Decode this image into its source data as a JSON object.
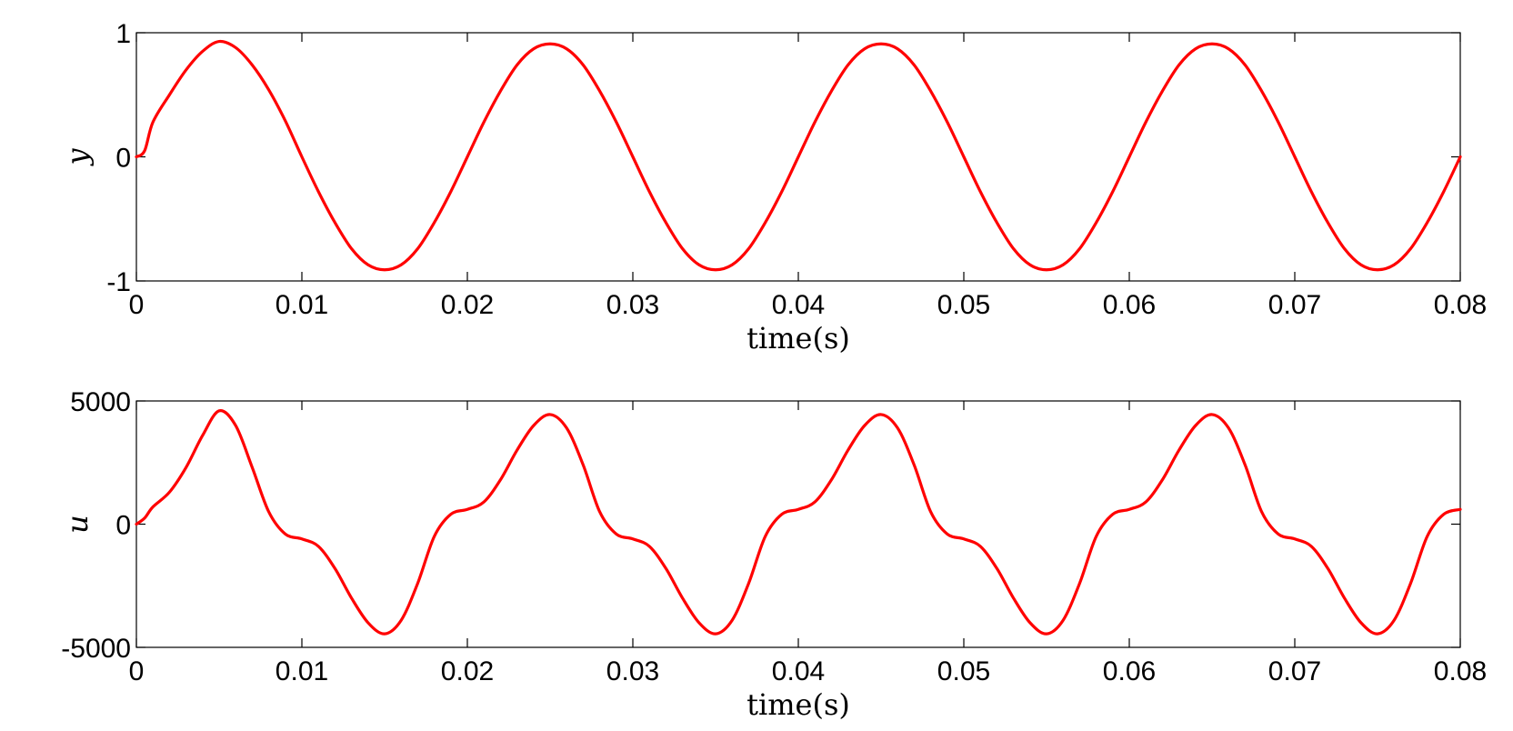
{
  "chart_data": [
    {
      "type": "line",
      "xlabel": "time(s)",
      "ylabel": "y",
      "xlim": [
        0,
        0.08
      ],
      "ylim": [
        -1,
        1
      ],
      "xticks": [
        "0",
        "0.01",
        "0.02",
        "0.03",
        "0.04",
        "0.05",
        "0.06",
        "0.07",
        "0.08"
      ],
      "yticks": [
        "-1",
        "0",
        "1"
      ],
      "grid": false,
      "series": [
        {
          "color": "#ff0000",
          "x": [
            0,
            0.0005,
            0.001,
            0.002,
            0.003,
            0.004,
            0.005,
            0.006,
            0.007,
            0.008,
            0.009,
            0.01,
            0.011,
            0.012,
            0.013,
            0.014,
            0.015,
            0.016,
            0.017,
            0.018,
            0.019,
            0.02,
            0.021,
            0.022,
            0.023,
            0.024,
            0.025,
            0.026,
            0.027,
            0.028,
            0.029,
            0.03,
            0.031,
            0.032,
            0.033,
            0.034,
            0.035,
            0.036,
            0.037,
            0.038,
            0.039,
            0.04,
            0.041,
            0.042,
            0.043,
            0.044,
            0.045,
            0.046,
            0.047,
            0.048,
            0.049,
            0.05,
            0.051,
            0.052,
            0.053,
            0.054,
            0.055,
            0.056,
            0.057,
            0.058,
            0.059,
            0.06,
            0.061,
            0.062,
            0.063,
            0.064,
            0.065,
            0.066,
            0.067,
            0.068,
            0.069,
            0.07,
            0.071,
            0.072,
            0.073,
            0.074,
            0.075,
            0.076,
            0.077,
            0.078,
            0.079,
            0.08
          ],
          "values": [
            0,
            0.05,
            0.28,
            0.5,
            0.7,
            0.85,
            0.93,
            0.88,
            0.74,
            0.54,
            0.29,
            0.0,
            -0.28,
            -0.53,
            -0.74,
            -0.87,
            -0.91,
            -0.87,
            -0.74,
            -0.53,
            -0.28,
            0.0,
            0.28,
            0.53,
            0.74,
            0.87,
            0.91,
            0.87,
            0.74,
            0.53,
            0.28,
            0.0,
            -0.28,
            -0.53,
            -0.74,
            -0.87,
            -0.91,
            -0.87,
            -0.74,
            -0.53,
            -0.28,
            0.0,
            0.28,
            0.53,
            0.74,
            0.87,
            0.91,
            0.87,
            0.74,
            0.53,
            0.28,
            0.0,
            -0.28,
            -0.53,
            -0.74,
            -0.87,
            -0.91,
            -0.87,
            -0.74,
            -0.53,
            -0.28,
            0.0,
            0.28,
            0.53,
            0.74,
            0.87,
            0.91,
            0.87,
            0.74,
            0.53,
            0.28,
            0.0,
            -0.28,
            -0.53,
            -0.74,
            -0.87,
            -0.91,
            -0.87,
            -0.74,
            -0.53,
            -0.28,
            0.0
          ]
        }
      ]
    },
    {
      "type": "line",
      "xlabel": "time(s)",
      "ylabel": "u",
      "xlim": [
        0,
        0.08
      ],
      "ylim": [
        -5000,
        5000
      ],
      "xticks": [
        "0",
        "0.01",
        "0.02",
        "0.03",
        "0.04",
        "0.05",
        "0.06",
        "0.07",
        "0.08"
      ],
      "yticks": [
        "-5000",
        "0",
        "5000"
      ],
      "grid": false,
      "series": [
        {
          "color": "#ff0000",
          "x": [
            0,
            0.0005,
            0.001,
            0.002,
            0.003,
            0.004,
            0.005,
            0.006,
            0.007,
            0.008,
            0.009,
            0.01,
            0.011,
            0.012,
            0.013,
            0.014,
            0.015,
            0.016,
            0.017,
            0.018,
            0.019,
            0.02,
            0.021,
            0.022,
            0.023,
            0.024,
            0.025,
            0.026,
            0.027,
            0.028,
            0.029,
            0.03,
            0.031,
            0.032,
            0.033,
            0.034,
            0.035,
            0.036,
            0.037,
            0.038,
            0.039,
            0.04,
            0.041,
            0.042,
            0.043,
            0.044,
            0.045,
            0.046,
            0.047,
            0.048,
            0.049,
            0.05,
            0.051,
            0.052,
            0.053,
            0.054,
            0.055,
            0.056,
            0.057,
            0.058,
            0.059,
            0.06,
            0.061,
            0.062,
            0.063,
            0.064,
            0.065,
            0.066,
            0.067,
            0.068,
            0.069,
            0.07,
            0.071,
            0.072,
            0.073,
            0.074,
            0.075,
            0.076,
            0.077,
            0.078,
            0.079,
            0.08
          ],
          "values": [
            0,
            250,
            700,
            1300,
            2300,
            3600,
            4600,
            4000,
            2300,
            500,
            -400,
            -600,
            -900,
            -1800,
            -3000,
            -4000,
            -4450,
            -3900,
            -2400,
            -500,
            400,
            600,
            900,
            1800,
            3000,
            4000,
            4450,
            3900,
            2400,
            500,
            -400,
            -600,
            -900,
            -1800,
            -3000,
            -4000,
            -4450,
            -3900,
            -2400,
            -500,
            400,
            600,
            900,
            1800,
            3000,
            4000,
            4450,
            3900,
            2400,
            500,
            -400,
            -600,
            -900,
            -1800,
            -3000,
            -4000,
            -4450,
            -3900,
            -2400,
            -500,
            400,
            600,
            900,
            1800,
            3000,
            4000,
            4450,
            3900,
            2400,
            500,
            -400,
            -600,
            -900,
            -1800,
            -3000,
            -4000,
            -4450,
            -3900,
            -2400,
            -500,
            400,
            600
          ]
        }
      ]
    }
  ]
}
